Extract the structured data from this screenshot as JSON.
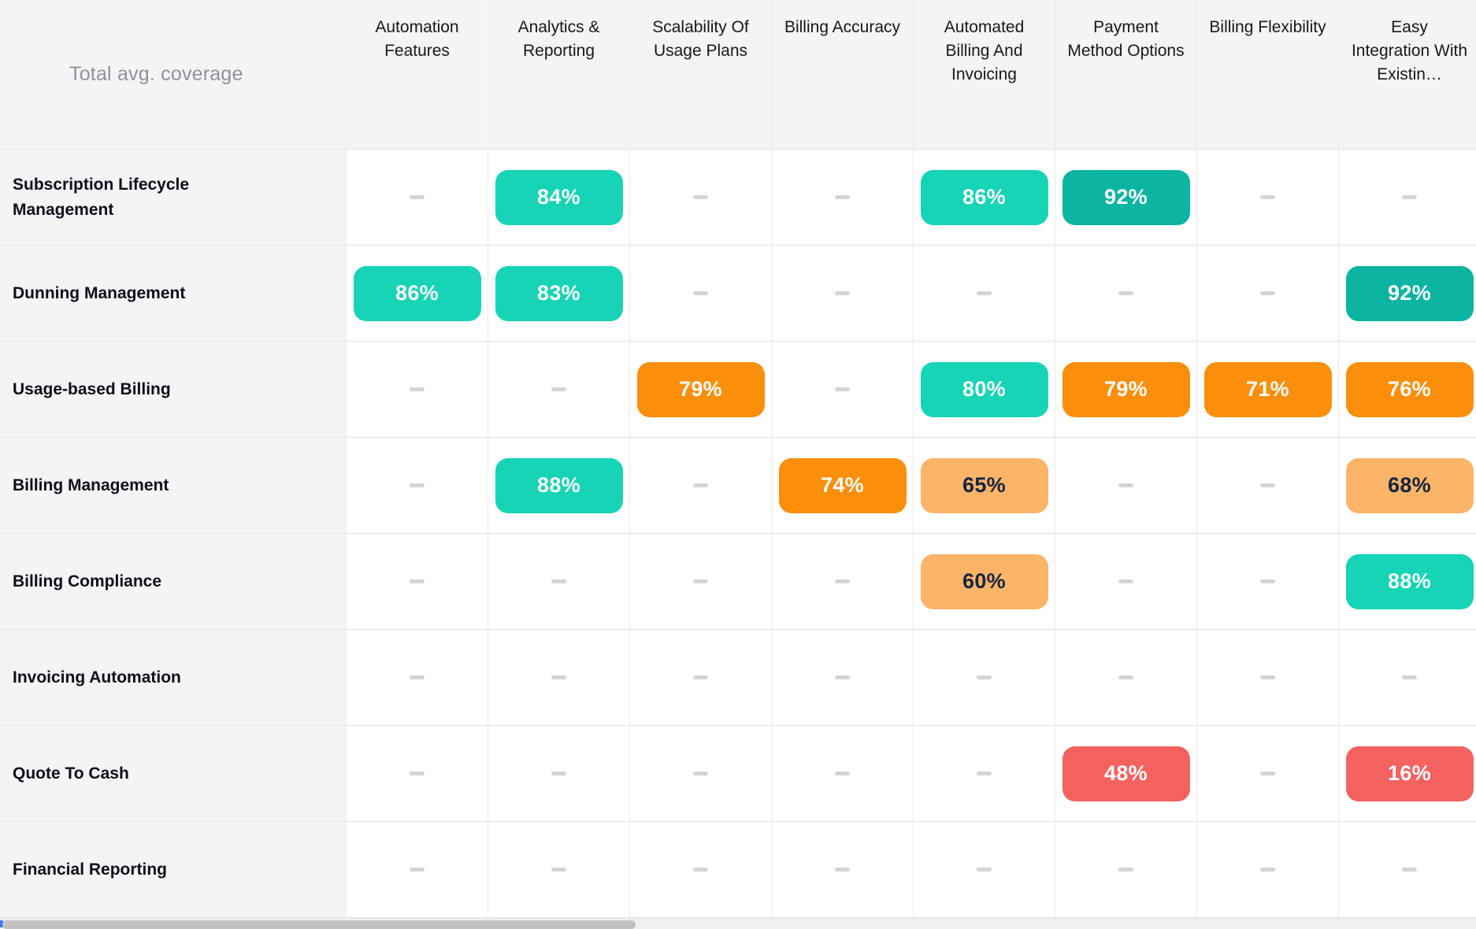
{
  "chart_data": {
    "type": "heatmap",
    "title": "Total avg. coverage",
    "unit": "%",
    "empty_symbol": "–",
    "legend_position": "none",
    "columns": [
      "Automation Features",
      "Analytics & Reporting",
      "Scalability Of Usage Plans",
      "Billing Accuracy",
      "Automated Billing And Invoicing",
      "Payment Method Options",
      "Billing Flexibility",
      "Easy Integration With Existin…"
    ],
    "rows": [
      {
        "label": "Subscription Lifecycle Management",
        "values": [
          null,
          84,
          null,
          null,
          86,
          92,
          null,
          null
        ]
      },
      {
        "label": "Dunning Management",
        "values": [
          86,
          83,
          null,
          null,
          null,
          null,
          null,
          92
        ]
      },
      {
        "label": "Usage-based Billing",
        "values": [
          null,
          null,
          79,
          null,
          80,
          79,
          71,
          76
        ]
      },
      {
        "label": "Billing Management",
        "values": [
          null,
          88,
          null,
          74,
          65,
          null,
          null,
          68
        ]
      },
      {
        "label": "Billing Compliance",
        "values": [
          null,
          null,
          null,
          null,
          60,
          null,
          null,
          88
        ]
      },
      {
        "label": "Invoicing Automation",
        "values": [
          null,
          null,
          null,
          null,
          null,
          null,
          null,
          null
        ]
      },
      {
        "label": "Quote To Cash",
        "values": [
          null,
          null,
          null,
          null,
          null,
          48,
          null,
          16
        ]
      },
      {
        "label": "Financial Reporting",
        "values": [
          null,
          null,
          null,
          null,
          null,
          null,
          null,
          null
        ]
      }
    ],
    "color_scale": {
      "90_to_100": "#0bb5a1",
      "80_to_89": "#16d4b5",
      "70_to_79": "#fb8e0b",
      "60_to_69": "#fbb468",
      "below_60": "#f4625f"
    },
    "badge_text_on_dark": "#ffffff",
    "badge_text_on_light": "#15253f"
  },
  "scrollbar": {
    "thumb_color": "#c2c2c3",
    "track_color": "#f0f0f1",
    "left_marker_color": "#3d77f2"
  }
}
